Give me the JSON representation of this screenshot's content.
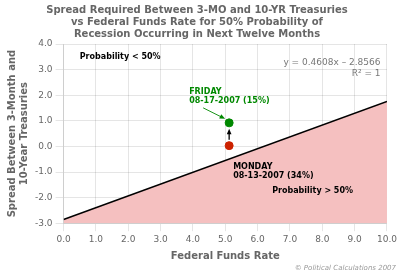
{
  "chart_data": {
    "type": "line",
    "title": "Spread Required Between 3-MO and 10-YR Treasuries\nvs Federal Funds Rate for 50% Probability of\nRecession Occurring in Next Twelve Months",
    "x_label": "Federal Funds Rate",
    "y_label": "Spread Between 3-Month and\n10-Year Treasuries",
    "xlim": [
      0.0,
      10.0
    ],
    "ylim": [
      -3.0,
      4.0
    ],
    "xticks": [
      {
        "value": 0,
        "label": "0.0"
      },
      {
        "value": 1,
        "label": "1.0"
      },
      {
        "value": 2,
        "label": "2.0"
      },
      {
        "value": 3,
        "label": "3.0"
      },
      {
        "value": 4,
        "label": "4.0"
      },
      {
        "value": 5,
        "label": "5.0"
      },
      {
        "value": 6,
        "label": "6.0"
      },
      {
        "value": 7,
        "label": "7.0"
      },
      {
        "value": 8,
        "label": "8.0"
      },
      {
        "value": 9,
        "label": "9.0"
      },
      {
        "value": 10,
        "label": "10.0"
      }
    ],
    "yticks": [
      {
        "value": -3,
        "label": "-3.0"
      },
      {
        "value": -2,
        "label": "-2.0"
      },
      {
        "value": -1,
        "label": "-1.0"
      },
      {
        "value": 0,
        "label": "0.0"
      },
      {
        "value": 1,
        "label": "1.0"
      },
      {
        "value": 2,
        "label": "2.0"
      },
      {
        "value": 3,
        "label": "3.0"
      },
      {
        "value": 4,
        "label": "4.0"
      }
    ],
    "grid": true,
    "series": [
      {
        "type": "area",
        "color": "#f5c0c0",
        "x": [
          0.0,
          10.0
        ],
        "values": [
          -2.8566,
          1.7514
        ]
      },
      {
        "type": "line",
        "color": "#000000",
        "x": [
          0.0,
          10.0
        ],
        "values": [
          -2.8566,
          1.7514
        ]
      },
      {
        "type": "scatter",
        "color": "#008800",
        "x": [
          5.12
        ],
        "values": [
          0.92
        ]
      },
      {
        "type": "scatter",
        "color": "#cc2200",
        "x": [
          5.12
        ],
        "values": [
          0.03
        ]
      }
    ],
    "arrows": [
      {
        "from": {
          "x": 5.12,
          "y": 0.03
        },
        "to": {
          "x": 5.12,
          "y": 0.92
        }
      }
    ],
    "annotations": [
      {
        "text": "y = 0.4608x – 2.8566\nR² = 1",
        "color": "#777777"
      },
      {
        "text": "Probability < 50%"
      },
      {
        "text": "Probability > 50%"
      },
      {
        "text": "FRIDAY\n08-17-2007 (15%)",
        "color": "#008800",
        "x": 5.12,
        "y": 0.92
      },
      {
        "text": "MONDAY\n08-13-2007 (34%)",
        "x": 5.12,
        "y": 0.03
      },
      {
        "text": "© Political Calculations 2007",
        "color": "#999999"
      }
    ]
  }
}
